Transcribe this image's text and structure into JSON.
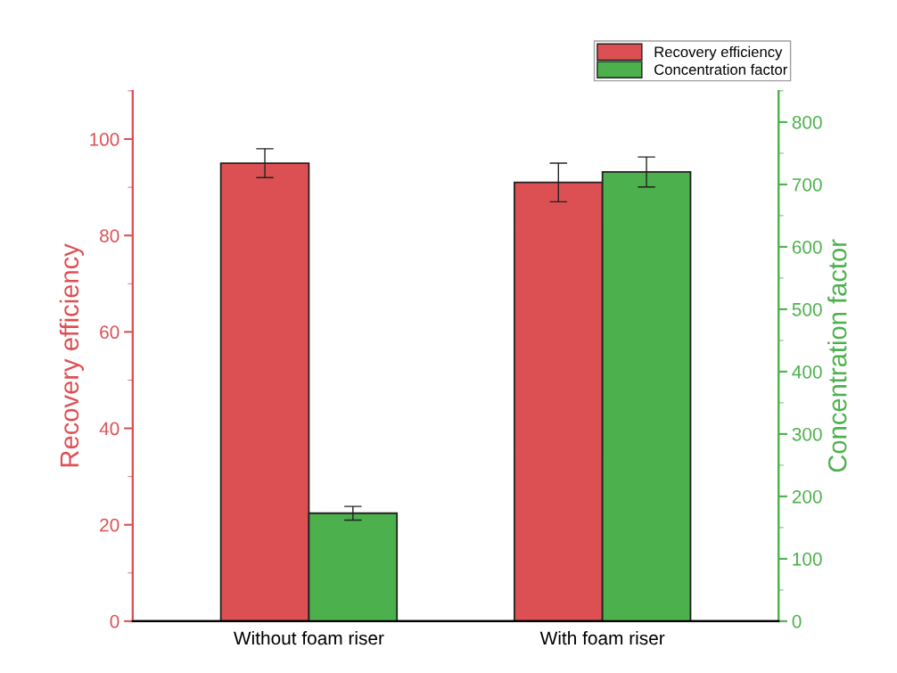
{
  "chart_data": {
    "type": "bar",
    "categories": [
      "Without foam riser",
      "With foam riser"
    ],
    "ylabel": "Recovery efficiency",
    "y2label": "Concentration factor",
    "series": [
      {
        "name": "Recovery efficiency",
        "color": "#dc5053",
        "values": [
          95,
          91
        ],
        "errors": [
          3,
          4
        ]
      },
      {
        "name": "Concentration factor",
        "color": "#4cb04c",
        "values": [
          173,
          720
        ],
        "errors": [
          11,
          24
        ],
        "axis": "y2"
      }
    ],
    "ylim": [
      0,
      110
    ],
    "yticks": [
      0,
      20,
      40,
      60,
      80,
      100
    ],
    "y2lim": [
      0,
      850
    ],
    "y2ticks": [
      0,
      100,
      200,
      300,
      400,
      500,
      600,
      700,
      800
    ],
    "legend": "top right",
    "grid": false
  }
}
